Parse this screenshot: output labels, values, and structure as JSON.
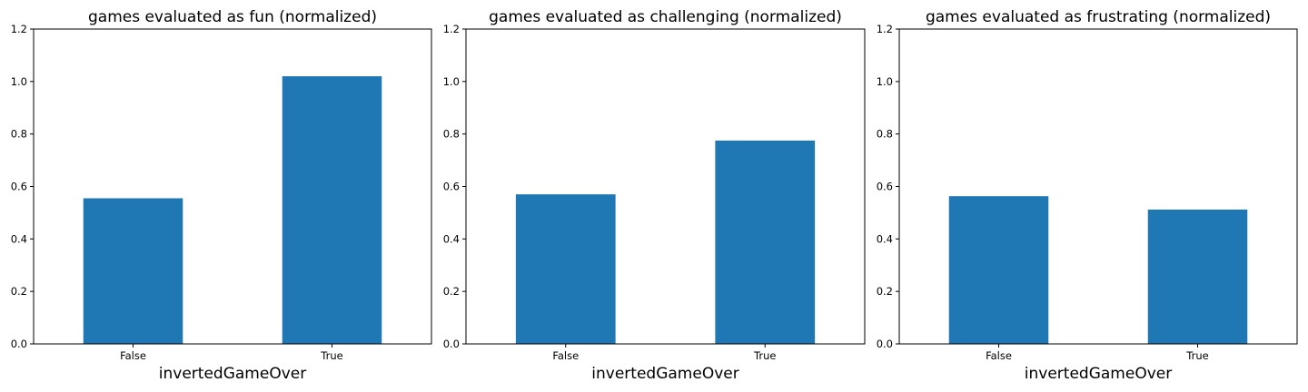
{
  "chart_data": [
    {
      "type": "bar",
      "title": "games evaluated as fun (normalized)",
      "xlabel": "invertedGameOver",
      "ylabel": "",
      "categories": [
        "False",
        "True"
      ],
      "values": [
        0.555,
        1.02
      ],
      "ylim": [
        0,
        1.2
      ],
      "yticks": [
        "0.0",
        "0.2",
        "0.4",
        "0.6",
        "0.8",
        "1.0",
        "1.2"
      ],
      "grid": false,
      "bar_color": "#1f77b4"
    },
    {
      "type": "bar",
      "title": "games evaluated as challenging (normalized)",
      "xlabel": "invertedGameOver",
      "ylabel": "",
      "categories": [
        "False",
        "True"
      ],
      "values": [
        0.57,
        0.775
      ],
      "ylim": [
        0,
        1.2
      ],
      "yticks": [
        "0.0",
        "0.2",
        "0.4",
        "0.6",
        "0.8",
        "1.0",
        "1.2"
      ],
      "grid": false,
      "bar_color": "#1f77b4"
    },
    {
      "type": "bar",
      "title": "games evaluated as frustrating (normalized)",
      "xlabel": "invertedGameOver",
      "ylabel": "",
      "categories": [
        "False",
        "True"
      ],
      "values": [
        0.563,
        0.512
      ],
      "ylim": [
        0,
        1.2
      ],
      "yticks": [
        "0.0",
        "0.2",
        "0.4",
        "0.6",
        "0.8",
        "1.0",
        "1.2"
      ],
      "grid": false,
      "bar_color": "#1f77b4"
    }
  ]
}
